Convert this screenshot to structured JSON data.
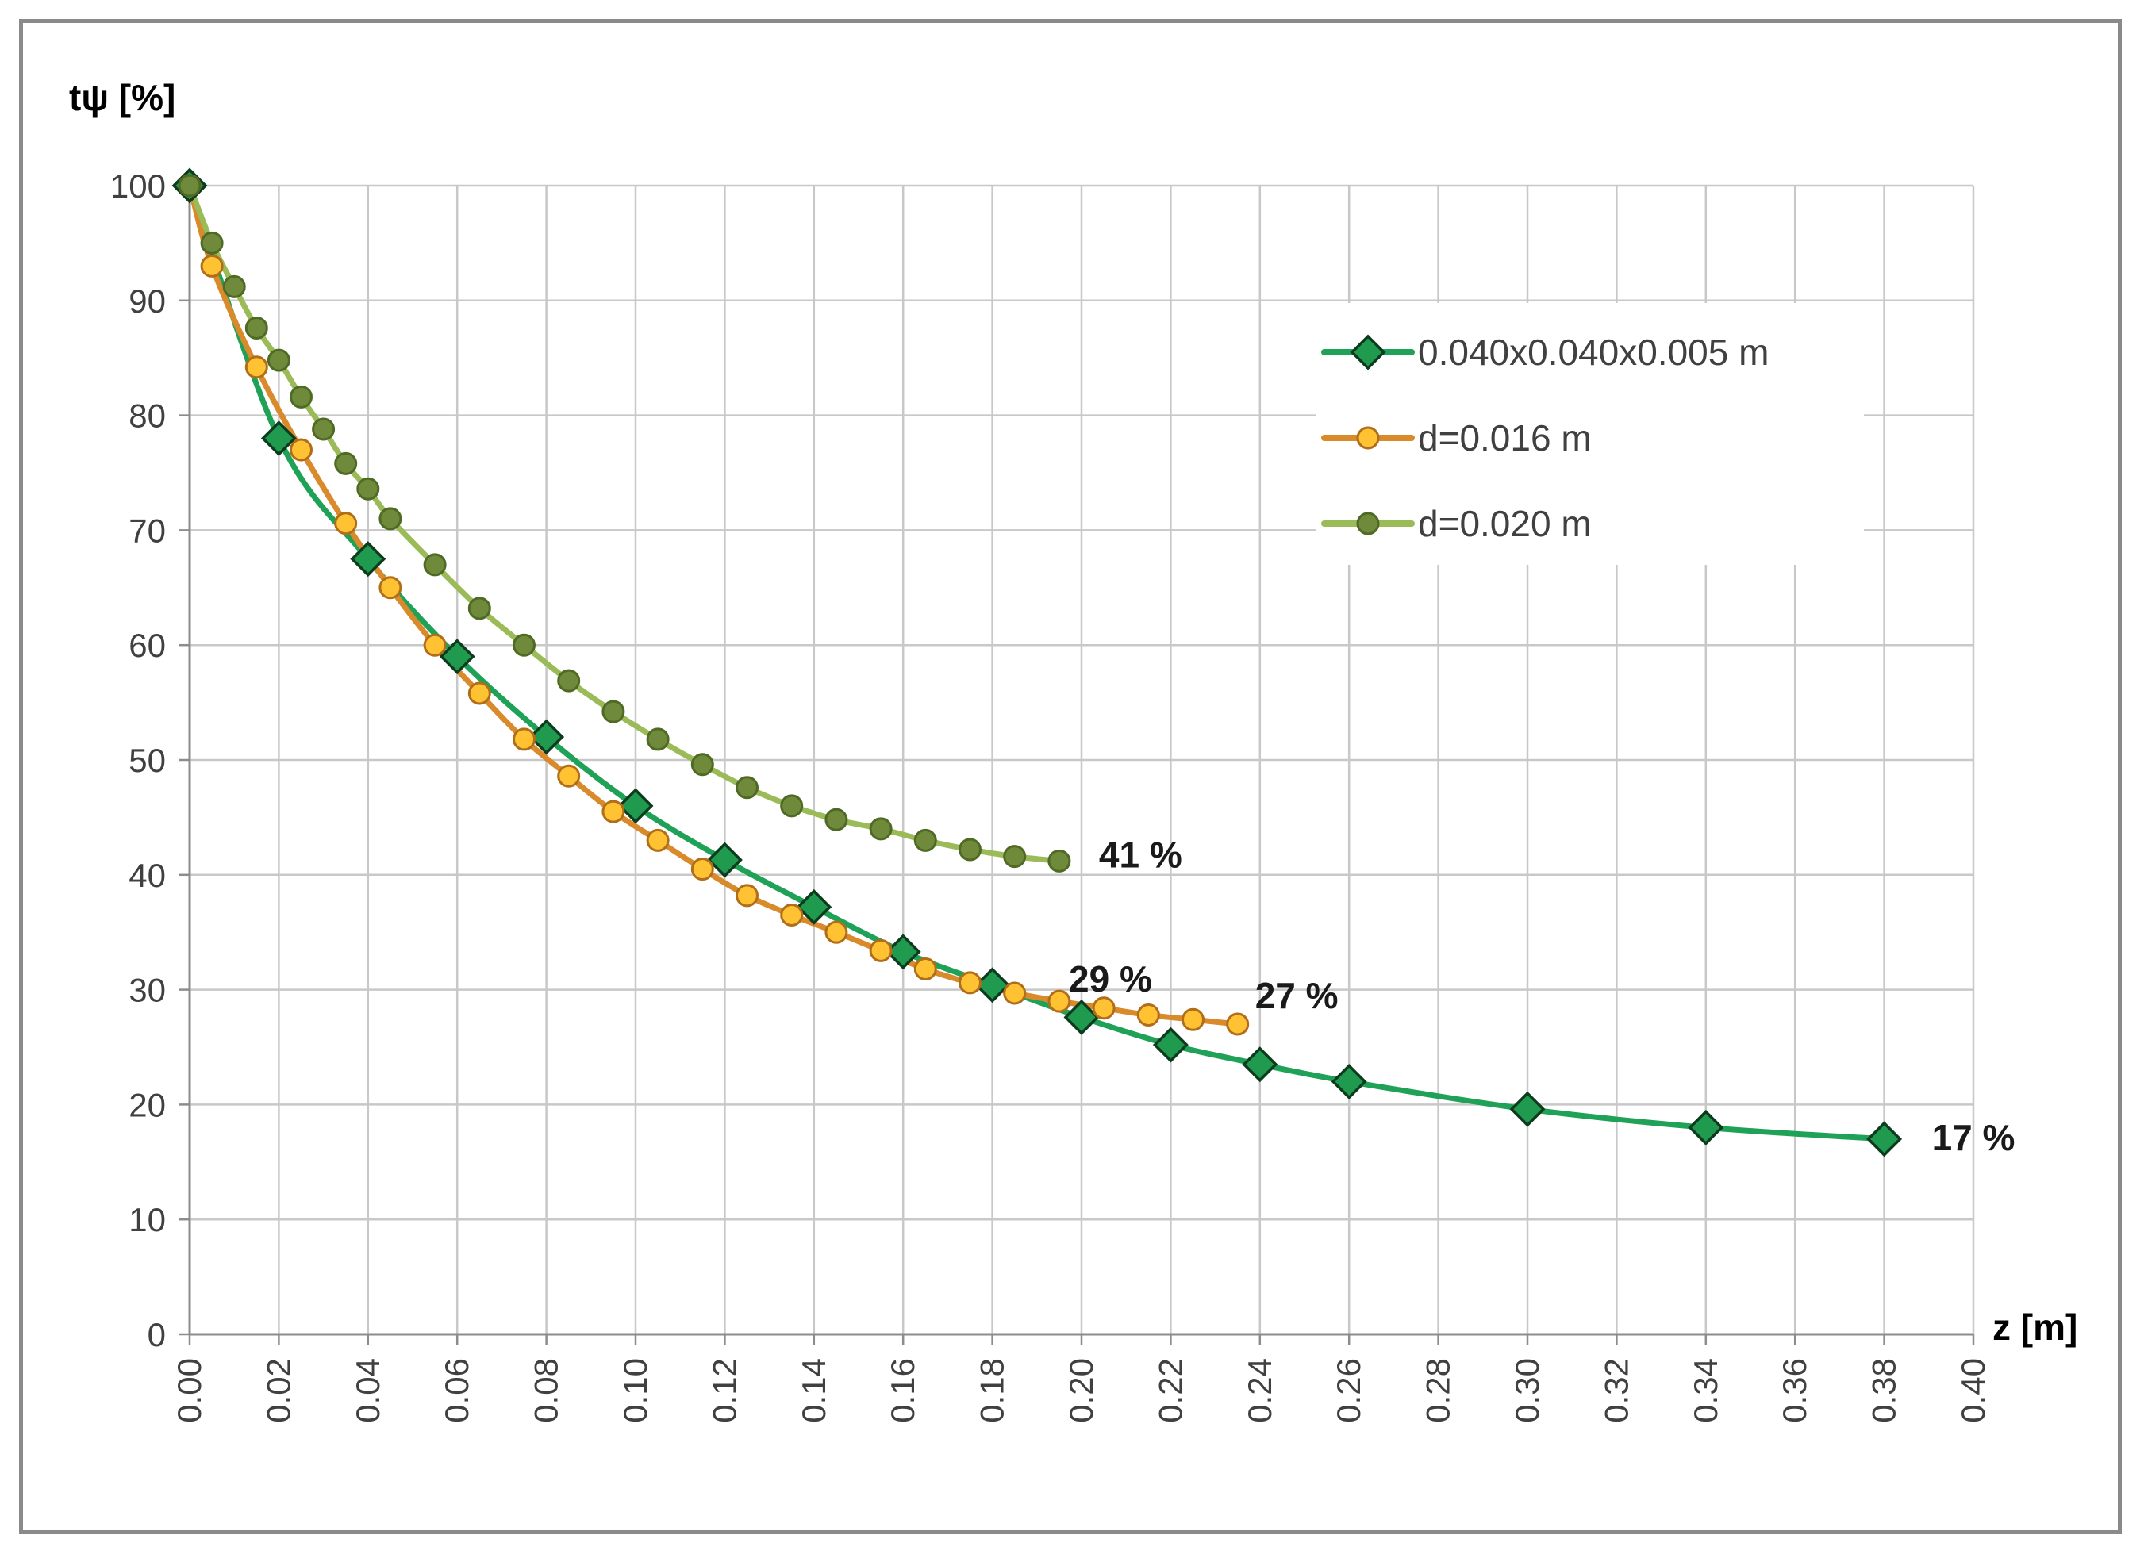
{
  "chart_data": {
    "type": "line",
    "title": "",
    "ylabel": "tψ [%]",
    "xlabel": "z [m]",
    "xlim": [
      0.0,
      0.4
    ],
    "ylim": [
      0,
      100
    ],
    "x_ticks": [
      "0.00",
      "0.02",
      "0.04",
      "0.06",
      "0.08",
      "0.10",
      "0.12",
      "0.14",
      "0.16",
      "0.18",
      "0.20",
      "0.22",
      "0.24",
      "0.26",
      "0.28",
      "0.30",
      "0.32",
      "0.34",
      "0.36",
      "0.38",
      "0.40"
    ],
    "y_ticks": [
      "0",
      "10",
      "20",
      "30",
      "40",
      "50",
      "60",
      "70",
      "80",
      "90",
      "100"
    ],
    "grid": true,
    "legend_position": "top-right",
    "series": [
      {
        "name": "0.040x0.040x0.005 m",
        "color": "#1fa257",
        "marker": "diamond",
        "marker_fill": "#1f9a4e",
        "marker_stroke": "#0d3b1e",
        "end_label": "17 %",
        "x": [
          0.0,
          0.02,
          0.04,
          0.06,
          0.08,
          0.1,
          0.12,
          0.14,
          0.16,
          0.18,
          0.2,
          0.22,
          0.24,
          0.26,
          0.3,
          0.34,
          0.38
        ],
        "y": [
          100,
          78,
          67.5,
          59,
          52,
          46,
          41.3,
          37.2,
          33.3,
          30.4,
          27.6,
          25.2,
          23.5,
          22,
          19.6,
          18,
          17
        ]
      },
      {
        "name": "d=0.016 m",
        "color": "#d98a2b",
        "marker": "circle",
        "marker_fill": "#ffc233",
        "marker_stroke": "#b06d1a",
        "end_label": "27 %",
        "x": [
          0.0,
          0.005,
          0.015,
          0.025,
          0.035,
          0.045,
          0.055,
          0.065,
          0.075,
          0.085,
          0.095,
          0.105,
          0.115,
          0.125,
          0.135,
          0.145,
          0.155,
          0.165,
          0.175,
          0.185,
          0.195,
          0.205,
          0.215,
          0.225,
          0.235
        ],
        "y": [
          100,
          93,
          84.2,
          77,
          70.6,
          65,
          60,
          55.8,
          51.8,
          48.6,
          45.5,
          43,
          40.5,
          38.2,
          36.5,
          35,
          33.4,
          31.8,
          30.6,
          29.7,
          29,
          28.4,
          27.8,
          27.4,
          27
        ]
      },
      {
        "name": "d=0.020 m",
        "color": "#9bbb59",
        "marker": "circle",
        "marker_fill": "#6f8a3a",
        "marker_stroke": "#4f6a25",
        "end_label": "41 %",
        "x": [
          0.0,
          0.005,
          0.01,
          0.015,
          0.02,
          0.025,
          0.03,
          0.035,
          0.04,
          0.045,
          0.055,
          0.065,
          0.075,
          0.085,
          0.095,
          0.105,
          0.115,
          0.125,
          0.135,
          0.145,
          0.155,
          0.165,
          0.175,
          0.185,
          0.195
        ],
        "y": [
          100,
          95,
          91.2,
          87.6,
          84.8,
          81.6,
          78.8,
          75.8,
          73.6,
          71,
          67,
          63.2,
          60,
          56.9,
          54.2,
          51.8,
          49.6,
          47.6,
          46,
          44.8,
          44,
          43,
          42.2,
          41.6,
          41.2
        ]
      }
    ],
    "annotations": [
      {
        "text": "29 %",
        "x": 0.2,
        "y": 29
      }
    ]
  }
}
